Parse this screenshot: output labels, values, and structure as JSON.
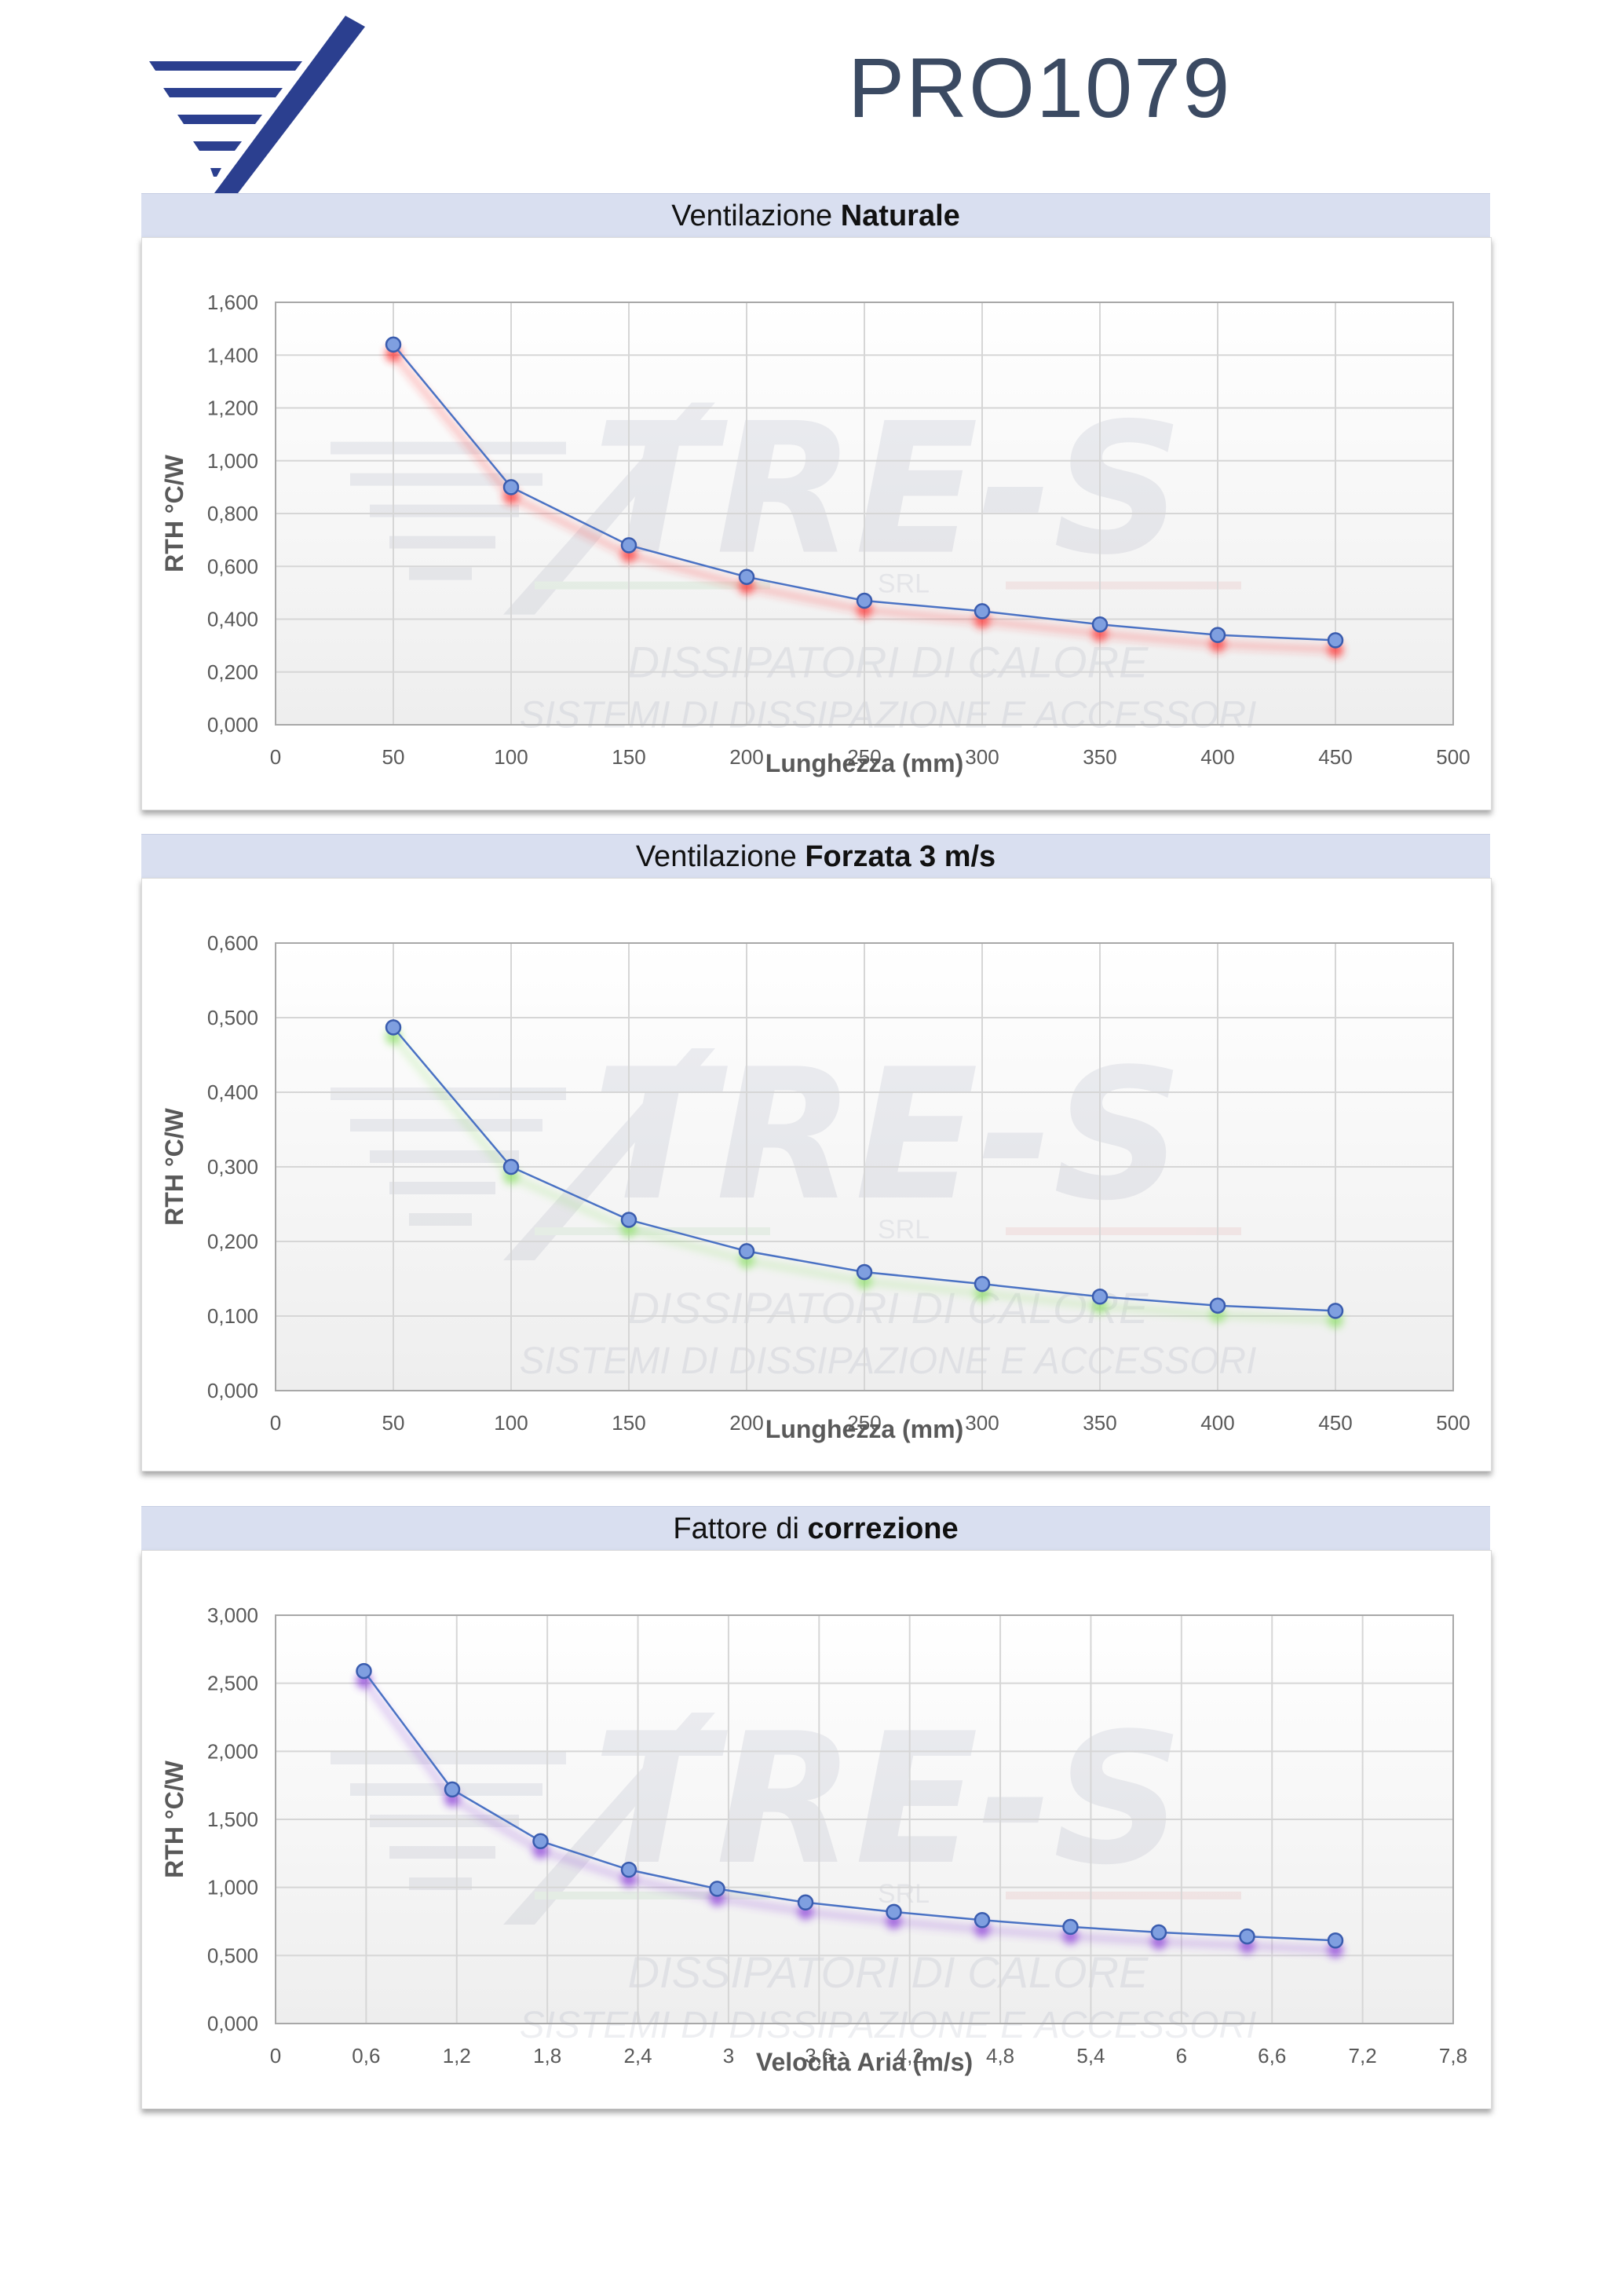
{
  "header": {
    "document_code": "PRO1079"
  },
  "watermark": {
    "brand": "TRE-S",
    "srl": "SRL",
    "line1": "DISSIPATORI DI CALORE",
    "line2": "SISTEMI DI DISSIPAZIONE E ACCESSORI"
  },
  "colors": {
    "brand_blue": "#2b3f8f",
    "series_line": "#4a72c4",
    "marker_fill": "#7f9fe0",
    "panel_header": "#d9dff0",
    "glow_natural": "#ff2a2a",
    "glow_forced": "#8fe06a",
    "glow_correction": "#8a3cd8"
  },
  "chart_data": [
    {
      "type": "line",
      "title_plain": "Ventilazione ",
      "title_bold": "Naturale",
      "xlabel": "Lunghezza (mm)",
      "ylabel": "RTH °C/W",
      "x": [
        50,
        100,
        150,
        200,
        250,
        300,
        350,
        400,
        450
      ],
      "series": [
        {
          "values": [
            1.44,
            0.9,
            0.68,
            0.56,
            0.47,
            0.43,
            0.38,
            0.34,
            0.32
          ]
        }
      ],
      "xlim": [
        0,
        500
      ],
      "ylim": [
        0,
        1.6
      ],
      "x_ticks": [
        "0",
        "50",
        "100",
        "150",
        "200",
        "250",
        "300",
        "350",
        "400",
        "450",
        "500"
      ],
      "y_ticks": [
        "0,000",
        "0,200",
        "0,400",
        "0,600",
        "0,800",
        "1,000",
        "1,200",
        "1,400",
        "1,600"
      ],
      "grid": true,
      "glow_color": "#ff2a2a"
    },
    {
      "type": "line",
      "title_plain": "Ventilazione ",
      "title_bold": "Forzata 3 m/s",
      "xlabel": "Lunghezza (mm)",
      "ylabel": "RTH °C/W",
      "x": [
        50,
        100,
        150,
        200,
        250,
        300,
        350,
        400,
        450
      ],
      "series": [
        {
          "values": [
            0.487,
            0.3,
            0.229,
            0.187,
            0.159,
            0.143,
            0.126,
            0.114,
            0.107
          ]
        }
      ],
      "xlim": [
        0,
        500
      ],
      "ylim": [
        0,
        0.6
      ],
      "x_ticks": [
        "0",
        "50",
        "100",
        "150",
        "200",
        "250",
        "300",
        "350",
        "400",
        "450",
        "500"
      ],
      "y_ticks": [
        "0,000",
        "0,100",
        "0,200",
        "0,300",
        "0,400",
        "0,500",
        "0,600"
      ],
      "grid": true,
      "glow_color": "#8fe06a"
    },
    {
      "type": "line",
      "title_plain": "Fattore di ",
      "title_bold": "correzione",
      "xlabel": "Velocità Aria (m/s)",
      "ylabel": "RTH °C/W",
      "x": [
        0.6,
        1.2,
        1.8,
        2.4,
        3.0,
        3.6,
        4.2,
        4.8,
        5.4,
        6.0,
        6.6,
        7.2
      ],
      "series": [
        {
          "values": [
            2.59,
            1.72,
            1.34,
            1.13,
            0.99,
            0.89,
            0.82,
            0.76,
            0.71,
            0.67,
            0.64,
            0.61
          ]
        }
      ],
      "xlim": [
        0,
        8.0
      ],
      "ylim": [
        0,
        3.0
      ],
      "x_ticks": [
        "0",
        "0,6",
        "1,2",
        "1,8",
        "2,4",
        "3",
        "3,6",
        "4,2",
        "4,8",
        "5,4",
        "6",
        "6,6",
        "7,2",
        "7,8"
      ],
      "y_ticks": [
        "0,000",
        "0,500",
        "1,000",
        "1,500",
        "2,000",
        "2,500",
        "3,000"
      ],
      "grid": true,
      "glow_color": "#8a3cd8"
    }
  ]
}
